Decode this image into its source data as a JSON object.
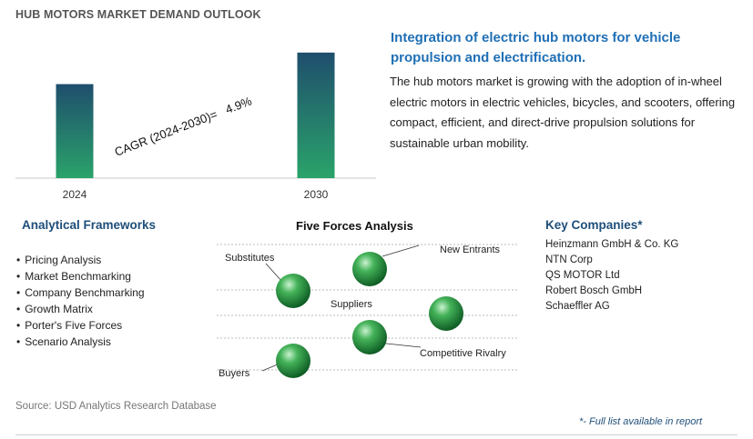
{
  "title": "HUB MOTORS MARKET DEMAND OUTLOOK",
  "chart_data": {
    "type": "bar",
    "categories": [
      "2024",
      "2030"
    ],
    "values": [
      1.0,
      1.3357
    ],
    "annotation": "CAGR (2024-2030)=   4.9%",
    "ylim": [
      0,
      1.45
    ],
    "grid": false,
    "legend": "none"
  },
  "headline": "Integration of electric hub motors for vehicle propulsion and electrification.",
  "description": "The hub motors market is growing with the adoption of in-wheel electric motors in electric vehicles, bicycles, and scooters, offering compact, efficient, and direct-drive propulsion solutions for sustainable urban mobility.",
  "frameworks": {
    "title": "Analytical Frameworks",
    "items": [
      "Pricing Analysis",
      "Market Benchmarking",
      "Company Benchmarking",
      "Growth Matrix",
      "Porter's Five Forces",
      "Scenario Analysis"
    ]
  },
  "five_forces": {
    "title": "Five Forces Analysis",
    "labels": [
      "Substitutes",
      "New Entrants",
      "Suppliers",
      "Competitive Rivalry",
      "Buyers"
    ]
  },
  "companies": {
    "title": "Key Companies*",
    "items": [
      "Heinzmann GmbH & Co. KG",
      "NTN Corp",
      "QS MOTOR Ltd",
      "Robert Bosch GmbH",
      "Schaeffler AG"
    ]
  },
  "source": "Source: USD Analytics Research Database",
  "footnote": "*- Full list available in report",
  "colors": {
    "bar_top": "#1f4e6d",
    "bar_bottom": "#2aa36a",
    "accent_blue": "#1f6fb5",
    "heading_navy": "#1f4e79",
    "sphere": "#1e8a3e"
  }
}
